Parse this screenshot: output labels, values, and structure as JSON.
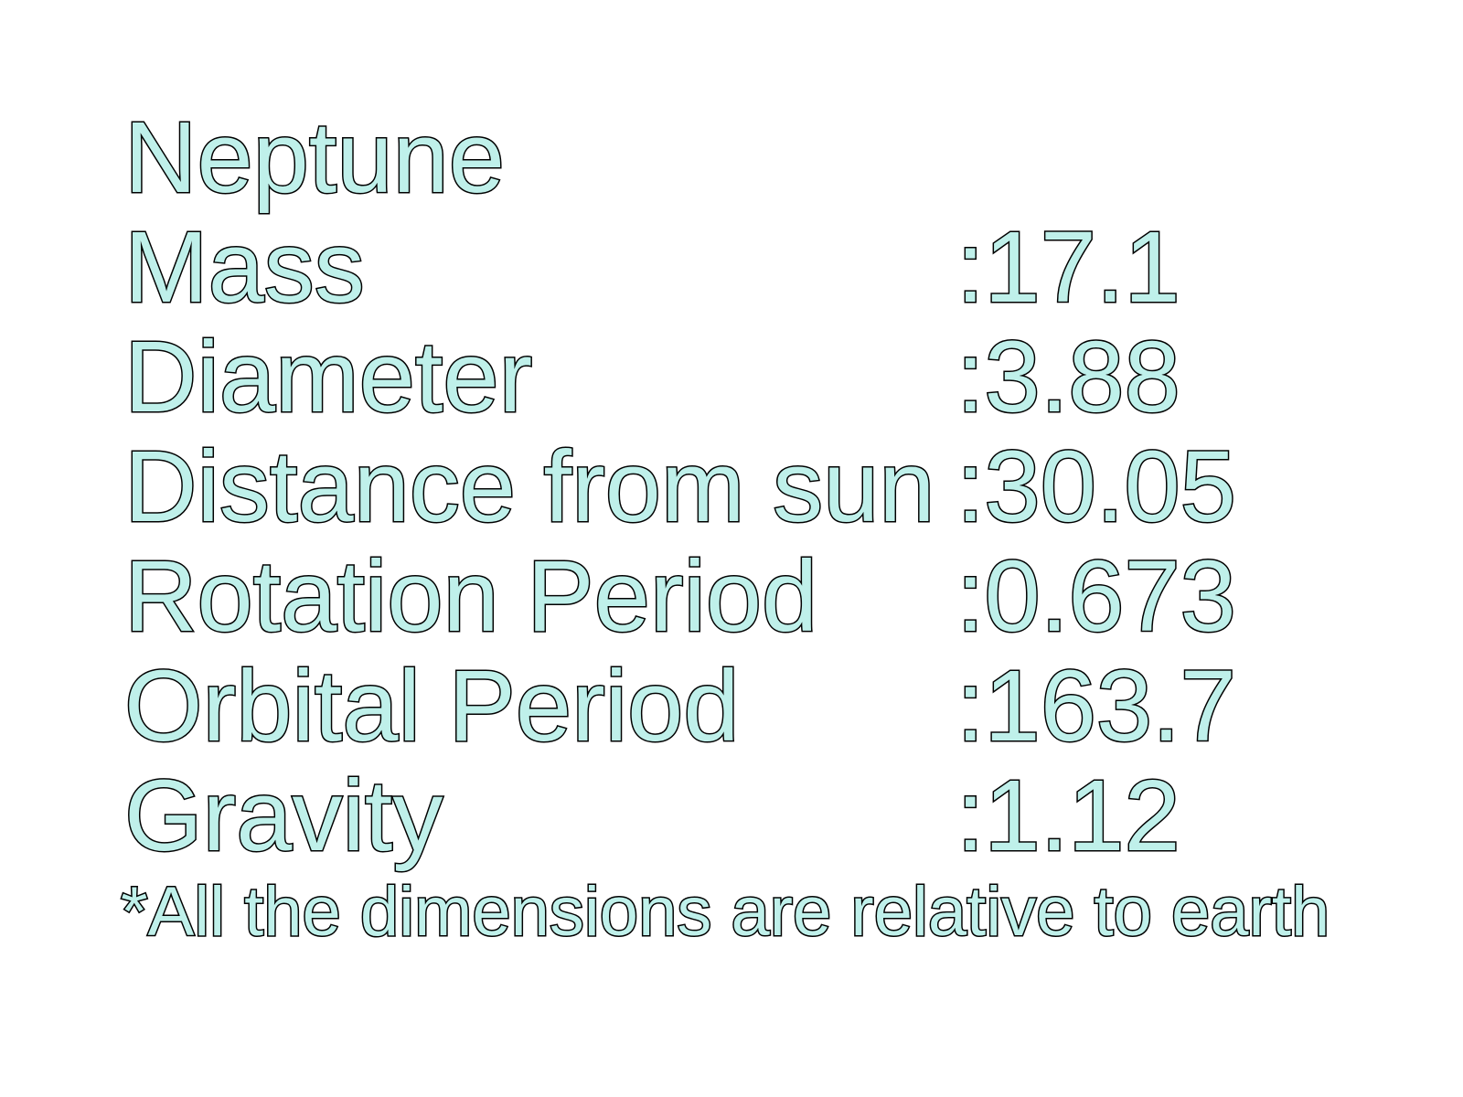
{
  "slide": {
    "title": "Neptune",
    "rows": [
      {
        "label": "Mass",
        "value": ":17.1"
      },
      {
        "label": "Diameter",
        "value": ":3.88"
      },
      {
        "label": "Distance from sun",
        "value": ":30.05"
      },
      {
        "label": "Rotation Period",
        "value": ":0.673"
      },
      {
        "label": "Orbital Period",
        "value": ":163.7"
      },
      {
        "label": "Gravity",
        "value": ":1.12"
      }
    ],
    "note": "*All the dimensions are relative to earth"
  },
  "colors": {
    "text_fill": "#bff0ea",
    "text_outline": "#000000",
    "background": "#ffffff"
  }
}
